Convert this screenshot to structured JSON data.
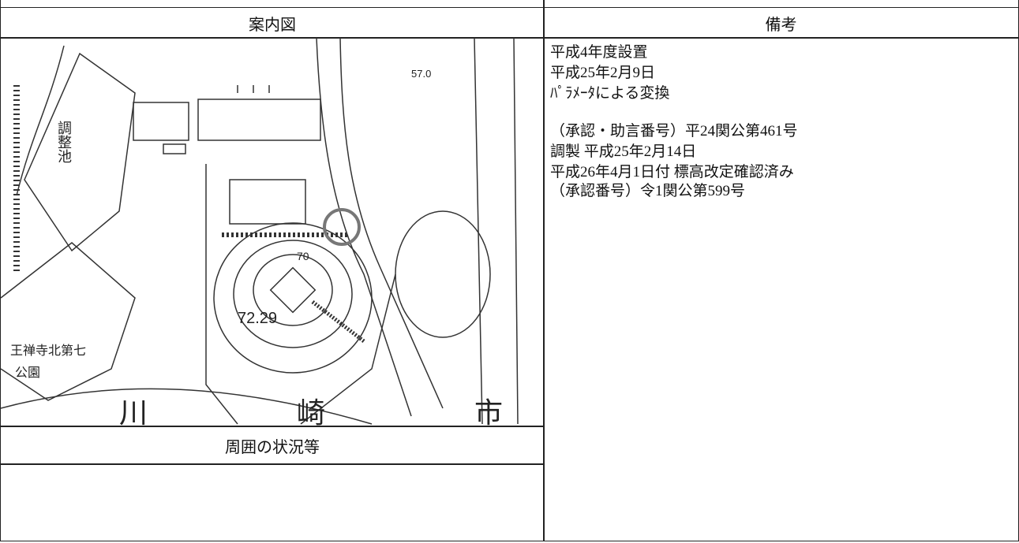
{
  "table": {
    "headers": [
      "案内図",
      "備考"
    ],
    "surroundings_header": "周囲の状況等",
    "remarks": [
      [
        "平成4年度設置",
        "平成25年2月9日",
        "ﾊﾟﾗﾒｰﾀによる変換"
      ],
      [
        "（承認・助言番号）平24関公第461号",
        "調製 平成25年2月14日",
        "平成26年4月1日付 標高改定確認済み",
        "（承認番号）令1関公第599号"
      ]
    ]
  },
  "map": {
    "labels": [
      "57.0",
      "70",
      "72.29",
      "調整池",
      "王禅寺北第七",
      "公園",
      "川",
      "崎",
      "市"
    ]
  }
}
